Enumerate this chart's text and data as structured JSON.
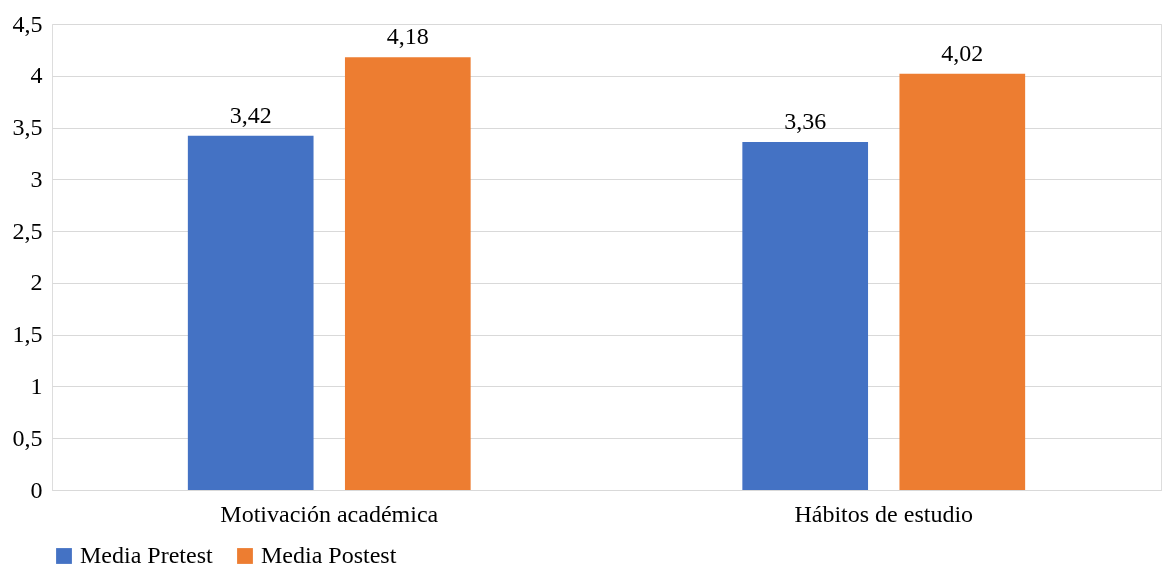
{
  "chart_data": {
    "type": "bar",
    "categories": [
      "Motivación académica",
      "Hábitos  de estudio"
    ],
    "series": [
      {
        "name": "Media Pretest",
        "color": "#4472c4",
        "values": [
          3.42,
          3.36
        ],
        "value_labels": [
          "3,42",
          "3,36"
        ]
      },
      {
        "name": "Media Postest",
        "color": "#ed7d31",
        "values": [
          4.18,
          4.02
        ],
        "value_labels": [
          "4,18",
          "4,02"
        ]
      }
    ],
    "ylim": [
      0,
      4.5
    ],
    "yticks": [
      0,
      {
        "value": 0.5,
        "label": "0,5"
      },
      1,
      {
        "value": 1.5,
        "label": "1,5"
      },
      2,
      {
        "value": 2.5,
        "label": "2,5"
      },
      3,
      {
        "value": 3.5,
        "label": "3,5"
      },
      4,
      {
        "value": 4.5,
        "label": "4,5"
      }
    ],
    "grid": "y",
    "legend": "bottom"
  }
}
